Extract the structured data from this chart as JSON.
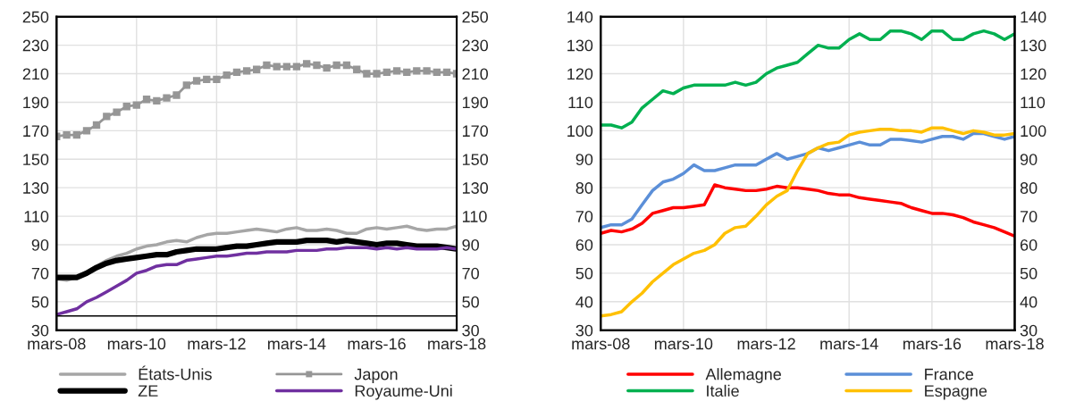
{
  "chart_data": [
    {
      "type": "line",
      "x": [
        "2008-03",
        "2008-06",
        "2008-09",
        "2008-12",
        "2009-03",
        "2009-06",
        "2009-09",
        "2009-12",
        "2010-03",
        "2010-06",
        "2010-09",
        "2010-12",
        "2011-03",
        "2011-06",
        "2011-09",
        "2011-12",
        "2012-03",
        "2012-06",
        "2012-09",
        "2012-12",
        "2013-03",
        "2013-06",
        "2013-09",
        "2013-12",
        "2014-03",
        "2014-06",
        "2014-09",
        "2014-12",
        "2015-03",
        "2015-06",
        "2015-09",
        "2015-12",
        "2016-03",
        "2016-06",
        "2016-09",
        "2016-12",
        "2017-03",
        "2017-06",
        "2017-09",
        "2017-12",
        "2018-03"
      ],
      "series": [
        {
          "name": "États-Unis",
          "color": "#a6a6a6",
          "marker": "none",
          "values": [
            66,
            65,
            67,
            71,
            75,
            79,
            82,
            84,
            87,
            89,
            90,
            92,
            93,
            92,
            95,
            97,
            98,
            98,
            99,
            100,
            101,
            100,
            99,
            101,
            102,
            100,
            100,
            101,
            100,
            98,
            98,
            101,
            102,
            101,
            102,
            103,
            101,
            100,
            101,
            101,
            103
          ]
        },
        {
          "name": "Japon",
          "color": "#969696",
          "marker": "square",
          "values": [
            166,
            167,
            167,
            170,
            174,
            180,
            183,
            187,
            188,
            192,
            191,
            193,
            195,
            202,
            205,
            206,
            206,
            209,
            211,
            212,
            213,
            216,
            215,
            215,
            215,
            217,
            216,
            214,
            216,
            216,
            213,
            210,
            210,
            211,
            212,
            211,
            212,
            212,
            211,
            211,
            210
          ]
        },
        {
          "name": "ZE",
          "color": "#000000",
          "marker": "none",
          "values": [
            67,
            67,
            67,
            70,
            74,
            77,
            79,
            80,
            81,
            82,
            83,
            83,
            85,
            86,
            87,
            87,
            87,
            88,
            89,
            89,
            90,
            91,
            92,
            92,
            92,
            93,
            93,
            93,
            92,
            93,
            92,
            91,
            90,
            91,
            91,
            90,
            89,
            89,
            89,
            88,
            87
          ]
        },
        {
          "name": "Royaume-Uni",
          "color": "#7030a0",
          "marker": "none",
          "values": [
            41,
            43,
            45,
            50,
            53,
            57,
            61,
            65,
            70,
            72,
            75,
            76,
            76,
            79,
            80,
            81,
            82,
            82,
            83,
            84,
            84,
            85,
            85,
            85,
            86,
            86,
            86,
            87,
            87,
            88,
            88,
            88,
            87,
            88,
            87,
            88,
            87,
            87,
            87,
            88,
            87
          ]
        }
      ],
      "xlim": [
        "2008-03",
        "2018-03"
      ],
      "xticks": [
        {
          "value": "2008-03",
          "label": "mars-08"
        },
        {
          "value": "2010-03",
          "label": "mars-10"
        },
        {
          "value": "2012-03",
          "label": "mars-12"
        },
        {
          "value": "2014-03",
          "label": "mars-14"
        },
        {
          "value": "2016-03",
          "label": "mars-16"
        },
        {
          "value": "2018-03",
          "label": "mars-18"
        }
      ],
      "ylim": [
        30,
        250
      ],
      "yticks": [
        30,
        50,
        70,
        90,
        110,
        130,
        150,
        170,
        190,
        210,
        230,
        250
      ],
      "y2lim": [
        30,
        250
      ],
      "y2ticks": [
        30,
        50,
        70,
        90,
        110,
        130,
        150,
        170,
        190,
        210,
        230,
        250
      ],
      "ref_lines": [
        {
          "axis": "y",
          "value": 40,
          "color": "#000000"
        }
      ],
      "grid": true,
      "legend": "bottom"
    },
    {
      "type": "line",
      "x": [
        "2008-03",
        "2008-06",
        "2008-09",
        "2008-12",
        "2009-03",
        "2009-06",
        "2009-09",
        "2009-12",
        "2010-03",
        "2010-06",
        "2010-09",
        "2010-12",
        "2011-03",
        "2011-06",
        "2011-09",
        "2011-12",
        "2012-03",
        "2012-06",
        "2012-09",
        "2012-12",
        "2013-03",
        "2013-06",
        "2013-09",
        "2013-12",
        "2014-03",
        "2014-06",
        "2014-09",
        "2014-12",
        "2015-03",
        "2015-06",
        "2015-09",
        "2015-12",
        "2016-03",
        "2016-06",
        "2016-09",
        "2016-12",
        "2017-03",
        "2017-06",
        "2017-09",
        "2017-12",
        "2018-03"
      ],
      "series": [
        {
          "name": "Allemagne",
          "color": "#ff0000",
          "values": [
            64,
            65,
            64.5,
            65.5,
            67.5,
            71,
            72,
            73,
            73,
            73.5,
            74,
            81,
            80,
            79.5,
            79,
            79,
            79.5,
            80.5,
            80,
            80,
            79.5,
            79,
            78,
            77.5,
            77.5,
            76.5,
            76,
            75.5,
            75,
            74.5,
            73,
            72,
            71,
            71,
            70.5,
            69.5,
            68,
            67,
            66,
            64.5,
            63
          ]
        },
        {
          "name": "France",
          "color": "#5b8fd8",
          "values": [
            66,
            67,
            67,
            69,
            74,
            79,
            82,
            83,
            85,
            88,
            86,
            86,
            87,
            88,
            88,
            88,
            90,
            92,
            90,
            91,
            92,
            94,
            93,
            94,
            95,
            96,
            95,
            95,
            97,
            97,
            96.5,
            96,
            97,
            98,
            98,
            97,
            99,
            99,
            98,
            97,
            98
          ]
        },
        {
          "name": "Italie",
          "color": "#00b050",
          "values": [
            102,
            102,
            101,
            103,
            108,
            111,
            114,
            113,
            115,
            116,
            116,
            116,
            116,
            117,
            116,
            117,
            120,
            122,
            123,
            124,
            127,
            130,
            129,
            129,
            132,
            134,
            132,
            132,
            135,
            135,
            134,
            132,
            135,
            135,
            132,
            132,
            134,
            135,
            134,
            132,
            134
          ]
        },
        {
          "name": "Espagne",
          "color": "#ffc000",
          "values": [
            35,
            35.5,
            36.5,
            40,
            43,
            47,
            50,
            53,
            55,
            57,
            58,
            60,
            64,
            66,
            66.5,
            70,
            74,
            77,
            79,
            86,
            92,
            94,
            95.5,
            96,
            98.5,
            99.5,
            100,
            100.5,
            100.5,
            100,
            100,
            99.5,
            101,
            101,
            100,
            99,
            100,
            99.5,
            98.5,
            98.5,
            99
          ]
        }
      ],
      "xlim": [
        "2008-03",
        "2018-03"
      ],
      "xticks": [
        {
          "value": "2008-03",
          "label": "mars-08"
        },
        {
          "value": "2010-03",
          "label": "mars-10"
        },
        {
          "value": "2012-03",
          "label": "mars-12"
        },
        {
          "value": "2014-03",
          "label": "mars-14"
        },
        {
          "value": "2016-03",
          "label": "mars-16"
        },
        {
          "value": "2018-03",
          "label": "mars-18"
        }
      ],
      "ylim": [
        30,
        140
      ],
      "yticks": [
        30,
        40,
        50,
        60,
        70,
        80,
        90,
        100,
        110,
        120,
        130,
        140
      ],
      "y2lim": [
        30,
        140
      ],
      "y2ticks": [
        30,
        40,
        50,
        60,
        70,
        80,
        90,
        100,
        110,
        120,
        130,
        140
      ],
      "grid": true,
      "legend": "bottom"
    }
  ]
}
